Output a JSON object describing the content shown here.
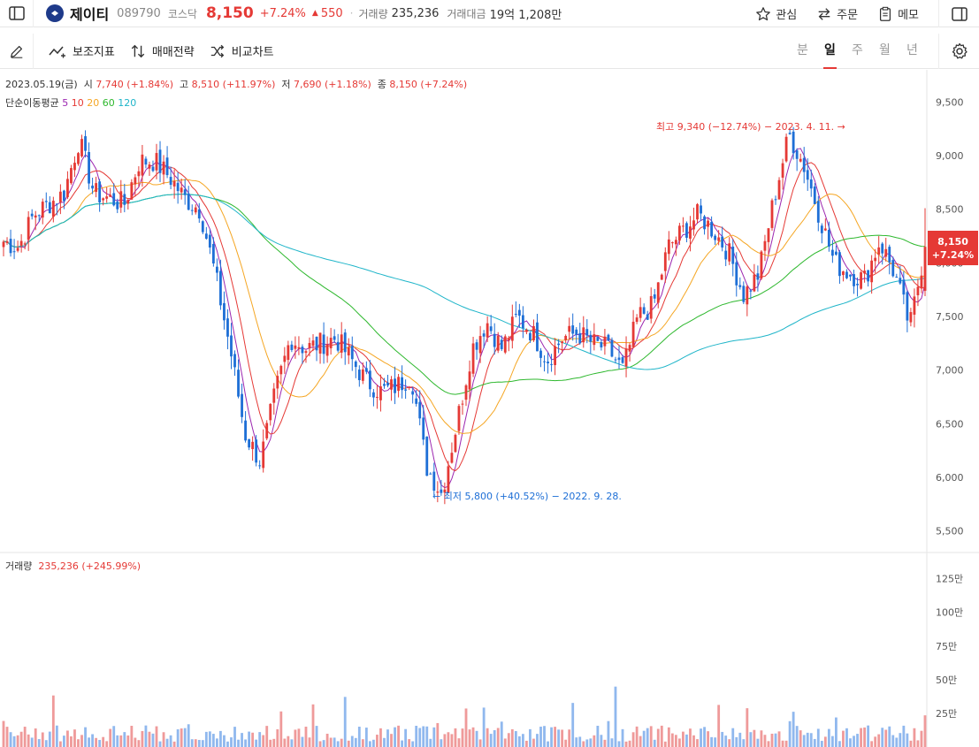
{
  "header": {
    "stock_name": "제이티",
    "code": "089790",
    "market": "코스닥",
    "price": "8,150",
    "change_pct": "+7.24%",
    "change_abs": "550",
    "volume_label": "거래량",
    "volume_value": "235,236",
    "amount_label": "거래대금",
    "amount_value": "19억 1,208만",
    "actions": {
      "watch": "관심",
      "order": "주문",
      "memo": "메모"
    }
  },
  "toolbar": {
    "indicator": "보조지표",
    "strategy": "매매전략",
    "compare": "비교차트",
    "periods": [
      "분",
      "일",
      "주",
      "월",
      "년"
    ],
    "active_period": "일"
  },
  "info": {
    "date": "2023.05.19(금)",
    "open_label": "시",
    "open": "7,740 (+1.84%)",
    "high_label": "고",
    "high": "8,510 (+11.97%)",
    "low_label": "저",
    "low": "7,690 (+1.18%)",
    "close_label": "종",
    "close": "8,150 (+7.24%)"
  },
  "ma": {
    "label": "단순이동평균",
    "periods": [
      {
        "value": "5",
        "color": "#9c27b0"
      },
      {
        "value": "10",
        "color": "#e53935"
      },
      {
        "value": "20",
        "color": "#f5a623"
      },
      {
        "value": "60",
        "color": "#2eb82e"
      },
      {
        "value": "120",
        "color": "#1fb5c9"
      }
    ]
  },
  "price_tag": {
    "price": "8,150",
    "pct": "+7.24%"
  },
  "annotations": {
    "high": "최고 9,340 (−12.74%) − 2023. 4. 11. →",
    "low": "← 최저 5,800 (+40.52%) − 2022. 9. 28."
  },
  "volume_info": {
    "label": "거래량",
    "value": "235,236 (+245.99%)"
  },
  "colors": {
    "up": "#e53935",
    "down": "#1e6fd6",
    "up_vol": "#ef9a9a",
    "down_vol": "#90b8ee"
  },
  "chart_data": {
    "type": "candlestick",
    "price_axis": {
      "ticks": [
        "9,500",
        "9,000",
        "8,500",
        "8,000",
        "7,500",
        "7,000",
        "6,500",
        "6,000",
        "5,500"
      ],
      "ylim": [
        5300,
        9800
      ]
    },
    "volume_axis": {
      "ticks": [
        "125만",
        "100만",
        "75만",
        "50만",
        "25만"
      ],
      "ylim": [
        0,
        1300000
      ]
    },
    "ma_periods": [
      5,
      10,
      20,
      60,
      120
    ],
    "high": {
      "value": 9340,
      "date": "2023. 4. 11."
    },
    "low": {
      "value": 5800,
      "date": "2022. 9. 28."
    },
    "last": {
      "open": 7740,
      "high": 8510,
      "low": 7690,
      "close": 8150,
      "volume": 235236
    },
    "trend_anchors": [
      8200,
      8150,
      8450,
      8550,
      8650,
      9150,
      8650,
      8600,
      8550,
      8950,
      8950,
      8800,
      8600,
      8500,
      7900,
      7200,
      6400,
      6150,
      6800,
      7300,
      7200,
      7250,
      7300,
      7100,
      6900,
      6800,
      6850,
      6950,
      6100,
      5850,
      6500,
      7200,
      7450,
      7200,
      7500,
      7350,
      7100,
      7300,
      7350,
      7250,
      7200,
      7000,
      7500,
      7600,
      8150,
      8300,
      8450,
      8300,
      8100,
      7700,
      7900,
      8600,
      9200,
      8900,
      8450,
      8000,
      7900,
      7850,
      8200,
      7900,
      7400,
      8150
    ]
  }
}
